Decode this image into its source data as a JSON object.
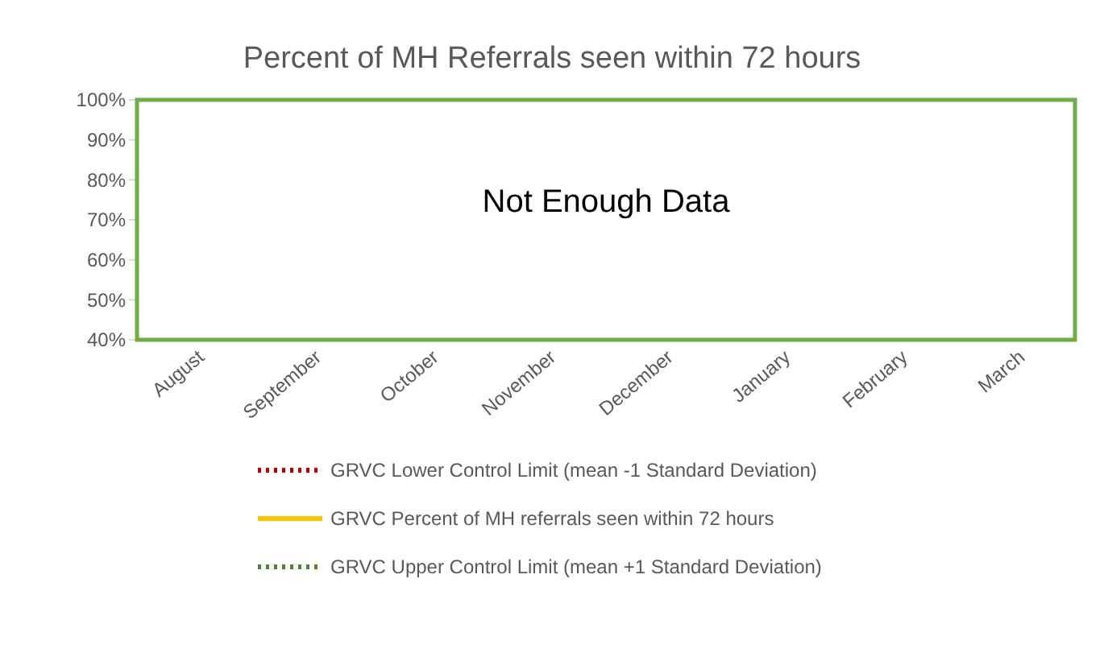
{
  "chart_data": {
    "type": "line",
    "title": "Percent of MH Referrals seen within 72 hours",
    "categories": [
      "August",
      "September",
      "October",
      "November",
      "December",
      "January",
      "February",
      "March"
    ],
    "series": [
      {
        "name": "GRVC Lower Control Limit (mean -1 Standard Deviation)",
        "color": "#c00000",
        "line_style": "dotted",
        "values": [
          null,
          null,
          null,
          null,
          null,
          null,
          null,
          null
        ]
      },
      {
        "name": "GRVC Percent of MH referrals seen within 72 hours",
        "color": "#ffc000",
        "line_style": "solid",
        "values": [
          null,
          null,
          null,
          null,
          null,
          null,
          null,
          null
        ]
      },
      {
        "name": "GRVC Upper Control Limit (mean +1 Standard Deviation)",
        "color": "#548235",
        "line_style": "dotted",
        "values": [
          null,
          null,
          null,
          null,
          null,
          null,
          null,
          null
        ]
      }
    ],
    "ylim": [
      40,
      100
    ],
    "yticks": [
      {
        "value": 40,
        "label": "40%"
      },
      {
        "value": 50,
        "label": "50%"
      },
      {
        "value": 60,
        "label": "60%"
      },
      {
        "value": 70,
        "label": "70%"
      },
      {
        "value": 80,
        "label": "80%"
      },
      {
        "value": 90,
        "label": "90%"
      },
      {
        "value": 100,
        "label": "100%"
      }
    ],
    "grid": false,
    "legend": "bottom",
    "marker": "none",
    "annotations": [
      "Not Enough Data"
    ]
  }
}
